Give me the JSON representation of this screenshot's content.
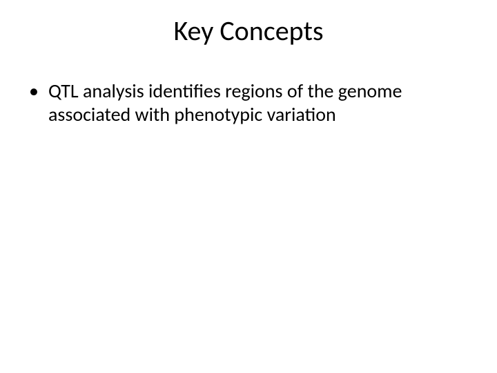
{
  "slide": {
    "title": "Key Concepts",
    "bullets": [
      {
        "marker": "•",
        "text": "QTL analysis identifies regions of the genome associated with phenotypic variation"
      }
    ],
    "title_fontsize": 40,
    "body_fontsize": 28,
    "background_color": "#ffffff",
    "text_color": "#000000",
    "font_family": "Calibri"
  }
}
